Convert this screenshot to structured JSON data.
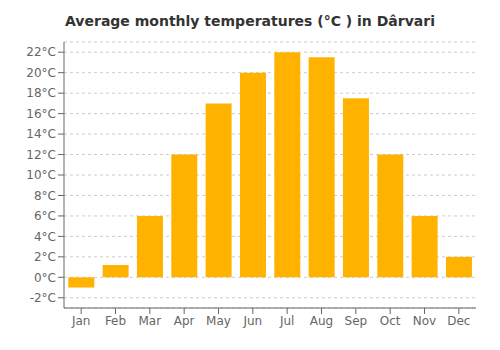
{
  "chart_data": {
    "type": "bar",
    "title": "Average monthly temperatures (°C ) in Dârvari",
    "categories": [
      "Jan",
      "Feb",
      "Mar",
      "Apr",
      "May",
      "Jun",
      "Jul",
      "Aug",
      "Sep",
      "Oct",
      "Nov",
      "Dec"
    ],
    "values": [
      -1.0,
      1.2,
      6.0,
      12.0,
      17.0,
      20.0,
      22.0,
      21.5,
      17.5,
      12.0,
      6.0,
      2.0
    ],
    "color": "#FFB300",
    "ylim": [
      -3,
      23
    ],
    "yticks": [
      {
        "value": -2,
        "label": "-2°C"
      },
      {
        "value": 0,
        "label": "0°C"
      },
      {
        "value": 2,
        "label": "2°C"
      },
      {
        "value": 4,
        "label": "4°C"
      },
      {
        "value": 6,
        "label": "6°C"
      },
      {
        "value": 8,
        "label": "8°C"
      },
      {
        "value": 10,
        "label": "10°C"
      },
      {
        "value": 12,
        "label": "12°C"
      },
      {
        "value": 14,
        "label": "14°C"
      },
      {
        "value": 16,
        "label": "16°C"
      },
      {
        "value": 18,
        "label": "18°C"
      },
      {
        "value": 20,
        "label": "20°C"
      },
      {
        "value": 22,
        "label": "22°C"
      }
    ],
    "grid": true
  }
}
